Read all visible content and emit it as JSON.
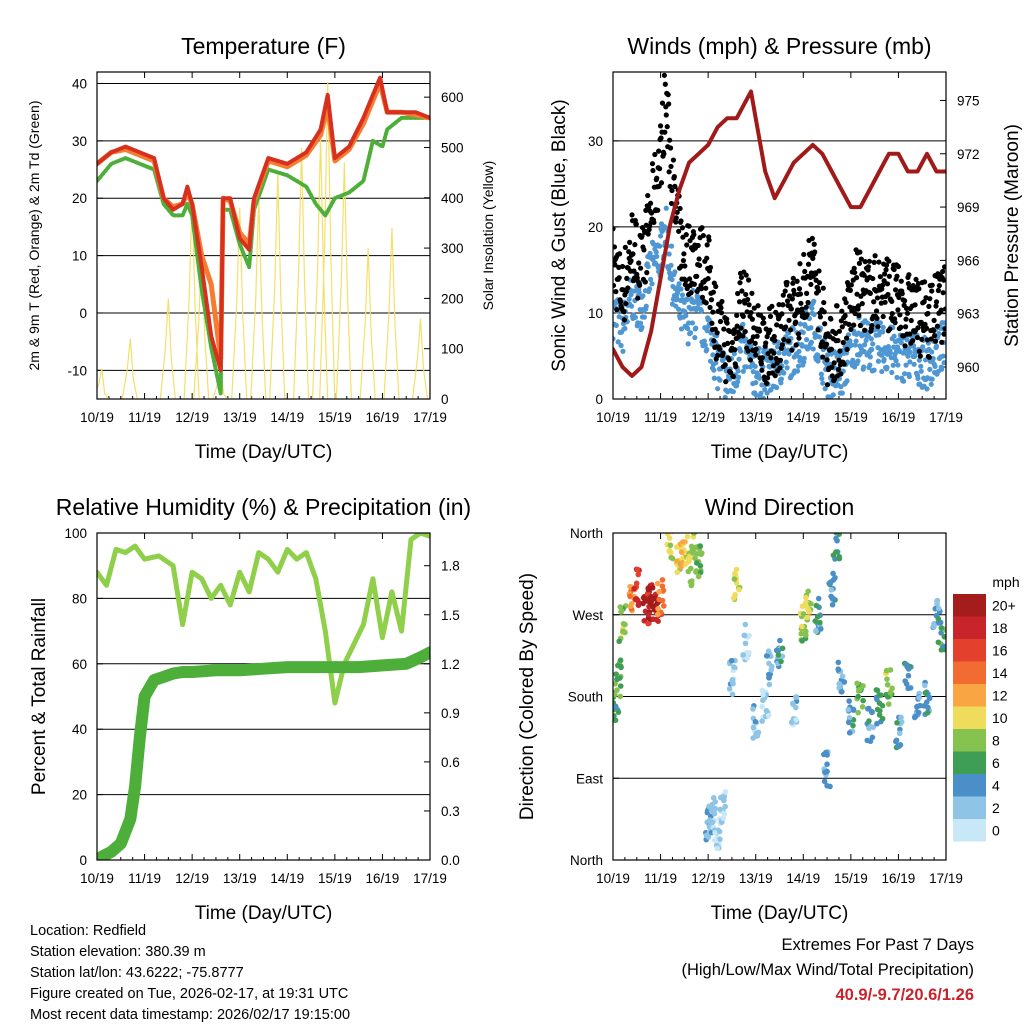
{
  "chart_data": [
    {
      "id": "temperature",
      "type": "line",
      "title": "Temperature (F)",
      "xlabel": "Time (Day/UTC)",
      "ylabel": "2m & 9m T (Red, Orange) & 2m Td (Green)",
      "ylabel_right": "Solar Insolation (Yellow)",
      "x_ticks": [
        "10/19",
        "11/19",
        "12/19",
        "13/19",
        "14/19",
        "15/19",
        "16/19",
        "17/19"
      ],
      "xlim": [
        0,
        7
      ],
      "ylim": [
        -15,
        42
      ],
      "y_ticks": [
        -10,
        0,
        10,
        20,
        30,
        40
      ],
      "ylim_right": [
        0,
        650
      ],
      "y_ticks_right": [
        0,
        100,
        200,
        300,
        400,
        500,
        600
      ],
      "grid": "horizontal",
      "series": [
        {
          "name": "2m T",
          "color": "#d7301f",
          "x": [
            0,
            0.3,
            0.6,
            0.9,
            1.2,
            1.4,
            1.6,
            1.8,
            1.9,
            2.0,
            2.2,
            2.4,
            2.6,
            2.65,
            2.8,
            3.0,
            3.2,
            3.3,
            3.6,
            4.0,
            4.4,
            4.7,
            4.85,
            5.0,
            5.3,
            5.6,
            5.8,
            5.95,
            6.1,
            6.4,
            6.7,
            7.0
          ],
          "y": [
            26,
            28,
            29,
            28,
            27,
            20,
            18,
            19,
            22,
            19,
            8,
            -4,
            -10,
            20,
            20,
            13,
            11,
            20,
            27,
            26,
            28,
            32,
            38,
            27,
            29,
            34,
            38,
            41,
            35,
            35,
            35,
            34
          ]
        },
        {
          "name": "9m T",
          "color": "#f57c30",
          "x": [
            0,
            0.3,
            0.6,
            0.9,
            1.2,
            1.4,
            1.6,
            1.8,
            1.9,
            2.0,
            2.2,
            2.4,
            2.6,
            2.65,
            2.8,
            3.0,
            3.2,
            3.3,
            3.6,
            4.0,
            4.4,
            4.7,
            4.85,
            5.0,
            5.3,
            5.6,
            5.8,
            5.95,
            6.1,
            6.4,
            6.7,
            7.0
          ],
          "y": [
            26,
            28,
            28.5,
            27.5,
            26.5,
            20,
            18.5,
            19,
            21,
            19,
            10,
            5,
            -8,
            20,
            19.5,
            14,
            12,
            19.5,
            26.5,
            25.5,
            27.5,
            31,
            36,
            26.5,
            28.5,
            33,
            37,
            40,
            35,
            35,
            34.5,
            34
          ]
        },
        {
          "name": "2m Td",
          "color": "#4daf3a",
          "x": [
            0,
            0.3,
            0.6,
            0.9,
            1.2,
            1.4,
            1.6,
            1.8,
            1.9,
            2.0,
            2.2,
            2.4,
            2.6,
            2.65,
            2.8,
            3.0,
            3.2,
            3.3,
            3.6,
            4.0,
            4.4,
            4.6,
            4.8,
            5.0,
            5.3,
            5.6,
            5.8,
            6.0,
            6.1,
            6.4,
            6.7,
            7.0
          ],
          "y": [
            23,
            26,
            27,
            26,
            25,
            19,
            17,
            17,
            19,
            17,
            4,
            -6,
            -14,
            18,
            18,
            12,
            8,
            18,
            25,
            24,
            22,
            19,
            17,
            20,
            21,
            23,
            30,
            29,
            32,
            34,
            34,
            34
          ]
        },
        {
          "name": "Solar Insolation",
          "color": "#f2e06a",
          "x": [
            0.1,
            0.7,
            1.5,
            2.0,
            2.2,
            2.6,
            3.0,
            3.4,
            3.8,
            4.3,
            4.7,
            4.85,
            5.2,
            5.7,
            6.2,
            6.8
          ],
          "y": [
            60,
            120,
            200,
            400,
            300,
            60,
            380,
            400,
            450,
            500,
            520,
            630,
            470,
            300,
            340,
            160
          ]
        }
      ]
    },
    {
      "id": "winds",
      "type": "scatter",
      "title": "Winds (mph) & Pressure (mb)",
      "xlabel": "Time (Day/UTC)",
      "ylabel": "Sonic Wind & Gust (Blue, Black)",
      "ylabel_right": "Station Pressure (Maroon)",
      "x_ticks": [
        "10/19",
        "11/19",
        "12/19",
        "13/19",
        "14/19",
        "15/19",
        "16/19",
        "17/19"
      ],
      "xlim": [
        0,
        7
      ],
      "ylim": [
        0,
        38
      ],
      "y_ticks": [
        0,
        10,
        20,
        30
      ],
      "ylim_right": [
        958.2,
        976.6
      ],
      "y_ticks_right": [
        960,
        963,
        966,
        969,
        972,
        975
      ],
      "grid": "horizontal",
      "wind": {
        "x": [
          0,
          0.2,
          0.4,
          0.6,
          0.8,
          1.0,
          1.1,
          1.3,
          1.5,
          1.7,
          2.0,
          2.2,
          2.5,
          2.7,
          3.0,
          3.3,
          3.6,
          3.9,
          4.2,
          4.5,
          4.8,
          5.1,
          5.4,
          5.7,
          6.0,
          6.3,
          6.6,
          6.9
        ],
        "y": [
          10,
          8,
          12,
          11,
          15,
          17,
          20,
          12,
          9,
          10,
          8,
          4,
          2,
          6,
          3,
          3,
          5,
          6,
          9,
          3,
          3,
          7,
          6,
          6,
          5,
          5,
          4,
          6
        ]
      },
      "gust": {
        "x": [
          0,
          0.2,
          0.4,
          0.6,
          0.8,
          1.0,
          1.1,
          1.3,
          1.5,
          1.7,
          2.0,
          2.2,
          2.5,
          2.7,
          3.0,
          3.3,
          3.6,
          3.9,
          4.2,
          4.5,
          4.8,
          5.1,
          5.4,
          5.7,
          6.0,
          6.3,
          6.6,
          6.9
        ],
        "y": [
          16,
          12,
          18,
          15,
          22,
          28,
          35,
          22,
          16,
          17,
          15,
          8,
          5,
          12,
          7,
          6,
          9,
          11,
          16,
          6,
          7,
          13,
          12,
          13,
          11,
          10,
          9,
          11
        ]
      },
      "pressure": {
        "x": [
          0,
          0.2,
          0.4,
          0.6,
          0.8,
          1.0,
          1.2,
          1.4,
          1.6,
          1.8,
          2.0,
          2.2,
          2.4,
          2.6,
          2.8,
          2.9,
          3.0,
          3.2,
          3.4,
          3.6,
          3.8,
          4.0,
          4.2,
          4.4,
          4.6,
          4.8,
          5.0,
          5.2,
          5.4,
          5.6,
          5.8,
          6.0,
          6.2,
          6.4,
          6.6,
          6.8,
          7.0
        ],
        "y": [
          961,
          960,
          959.5,
          960,
          962,
          965,
          968,
          970,
          971.5,
          972,
          972.5,
          973.5,
          974,
          974,
          975,
          975.5,
          974,
          971,
          969.5,
          970.5,
          971.5,
          972,
          972.5,
          972,
          971,
          970,
          969,
          969,
          970,
          971,
          972,
          972,
          971,
          971,
          972,
          971,
          971
        ]
      }
    },
    {
      "id": "humidity",
      "type": "line",
      "title": "Relative Humidity (%) & Precipitation (in)",
      "xlabel": "Time (Day/UTC)",
      "ylabel": "Percent & Total Rainfall",
      "x_ticks": [
        "10/19",
        "11/19",
        "12/19",
        "13/19",
        "14/19",
        "15/19",
        "16/19",
        "17/19"
      ],
      "xlim": [
        0,
        7
      ],
      "ylim": [
        0,
        100
      ],
      "y_ticks": [
        0,
        20,
        40,
        60,
        80,
        100
      ],
      "ylim_right": [
        0,
        2.0
      ],
      "y_ticks_right": [
        "0.0",
        "0.3",
        "0.6",
        "0.9",
        "1.2",
        "1.5",
        "1.8"
      ],
      "grid": "horizontal",
      "series": [
        {
          "name": "Relative Humidity",
          "color": "#8fcf4a",
          "x": [
            0,
            0.2,
            0.4,
            0.6,
            0.8,
            1.0,
            1.3,
            1.6,
            1.8,
            2.0,
            2.2,
            2.4,
            2.6,
            2.8,
            3.0,
            3.2,
            3.4,
            3.6,
            3.8,
            4.0,
            4.2,
            4.4,
            4.6,
            4.8,
            5.0,
            5.2,
            5.4,
            5.6,
            5.8,
            6.0,
            6.2,
            6.4,
            6.6,
            6.8,
            7.0
          ],
          "y": [
            88,
            84,
            95,
            94,
            96,
            92,
            93,
            90,
            72,
            88,
            86,
            80,
            84,
            78,
            88,
            82,
            94,
            92,
            88,
            95,
            92,
            94,
            86,
            70,
            48,
            60,
            66,
            72,
            86,
            68,
            82,
            70,
            98,
            100,
            99
          ]
        },
        {
          "name": "Total Rainfall",
          "color": "#4daf3a",
          "x": [
            0,
            0.1,
            0.3,
            0.5,
            0.7,
            0.8,
            0.9,
            1.0,
            1.1,
            1.2,
            1.4,
            1.6,
            1.8,
            2.0,
            2.5,
            3.0,
            3.5,
            4.0,
            4.5,
            5.0,
            5.5,
            6.0,
            6.5,
            6.8,
            7.0
          ],
          "y": [
            0,
            0.02,
            0.05,
            0.1,
            0.25,
            0.45,
            0.75,
            1.0,
            1.05,
            1.1,
            1.12,
            1.14,
            1.15,
            1.15,
            1.16,
            1.16,
            1.17,
            1.18,
            1.18,
            1.18,
            1.18,
            1.19,
            1.2,
            1.24,
            1.27
          ]
        }
      ]
    },
    {
      "id": "wind_direction",
      "type": "scatter",
      "title": "Wind Direction",
      "xlabel": "Time (Day/UTC)",
      "ylabel": "Direction (Colored By Speed)",
      "x_ticks": [
        "10/19",
        "11/19",
        "12/19",
        "13/19",
        "14/19",
        "15/19",
        "16/19",
        "17/19"
      ],
      "xlim": [
        0,
        7
      ],
      "ylim": [
        0,
        360
      ],
      "y_ticks": [
        "North",
        "East",
        "South",
        "West",
        "North"
      ],
      "grid": "horizontal",
      "colorbar": {
        "title": "mph",
        "labels": [
          "20+",
          "18",
          "16",
          "14",
          "12",
          "10",
          "8",
          "6",
          "4",
          "2",
          "0"
        ],
        "colors": [
          "#a51c1c",
          "#c8242b",
          "#e3412e",
          "#f26b30",
          "#f9a544",
          "#f0dc5c",
          "#86c250",
          "#3f9e55",
          "#4a8fc8",
          "#8ec4e6",
          "#c8e8f8"
        ]
      },
      "points": {
        "x": [
          0.05,
          0.1,
          0.2,
          0.4,
          0.5,
          0.7,
          0.8,
          0.9,
          1.0,
          1.2,
          1.4,
          1.5,
          1.6,
          1.7,
          1.8,
          2.0,
          2.1,
          2.2,
          2.3,
          2.5,
          2.6,
          2.8,
          3.0,
          3.2,
          3.3,
          3.5,
          3.8,
          4.0,
          4.1,
          4.3,
          4.5,
          4.6,
          4.7,
          4.8,
          5.0,
          5.2,
          5.4,
          5.6,
          5.8,
          6.0,
          6.2,
          6.4,
          6.6,
          6.8,
          6.9
        ],
        "y": [
          170,
          200,
          260,
          290,
          300,
          280,
          285,
          280,
          290,
          350,
          330,
          340,
          320,
          350,
          330,
          40,
          50,
          30,
          60,
          200,
          300,
          240,
          150,
          170,
          210,
          230,
          160,
          260,
          280,
          270,
          100,
          300,
          350,
          200,
          160,
          180,
          150,
          170,
          190,
          140,
          200,
          170,
          180,
          270,
          250
        ],
        "speed": [
          5,
          7,
          8,
          12,
          17,
          18,
          20,
          19,
          14,
          9,
          10,
          11,
          9,
          8,
          7,
          3,
          2,
          1,
          1,
          2,
          9,
          1,
          2,
          1,
          3,
          4,
          2,
          8,
          9,
          4,
          3,
          4,
          5,
          3,
          4,
          7,
          4,
          5,
          8,
          4,
          5,
          3,
          4,
          3,
          6
        ]
      }
    }
  ],
  "footer": {
    "location": "Location: Redfield",
    "elevation": "Station elevation: 380.39 m",
    "latlon": "Station lat/lon: 43.6222; -75.8777",
    "created": "Figure created on Tue, 2026-02-17, at 19:31 UTC",
    "recent": "Most recent data timestamp: 2026/02/17 19:15:00",
    "extremes_title": "Extremes For Past 7 Days",
    "extremes_subtitle": "(High/Low/Max Wind/Total Precipitation)",
    "extremes_value": "40.9/-9.7/20.6/1.26"
  }
}
